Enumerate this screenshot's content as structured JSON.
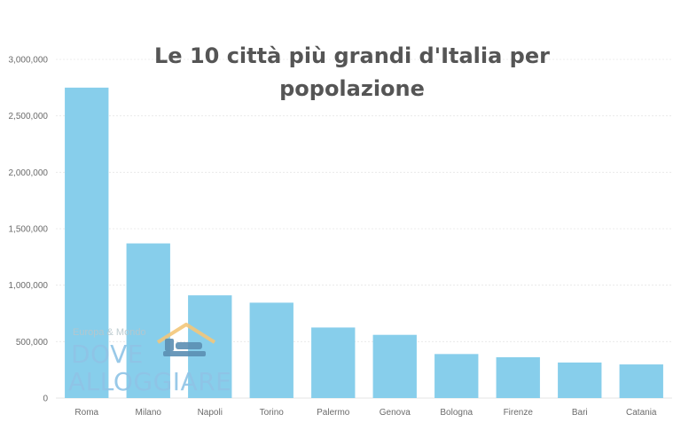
{
  "chart_data": {
    "type": "bar",
    "title_lines": [
      "Le 10 città più grandi d'Italia per",
      "popolazione"
    ],
    "categories": [
      "Roma",
      "Milano",
      "Napoli",
      "Torino",
      "Palermo",
      "Genova",
      "Bologna",
      "Firenze",
      "Bari",
      "Catania"
    ],
    "values": [
      2750000,
      1370000,
      910000,
      845000,
      625000,
      560000,
      390000,
      362000,
      315000,
      298000
    ],
    "yticks": [
      "0",
      "500,000",
      "1,000,000",
      "1,500,000",
      "2,000,000",
      "2,500,000",
      "3,000,000"
    ],
    "ylim": [
      0,
      3000000
    ],
    "xlabel": "",
    "ylabel": "",
    "grid": true,
    "bar_color": "#87ceeb",
    "grid_color": "#e6e6e6"
  },
  "watermark": {
    "tagline": "Europa & Mondo",
    "line1": "DOVE",
    "line2": "ALLOGGIARE",
    "color": "#8fc4e6",
    "roof_color": "#f3c77a"
  }
}
